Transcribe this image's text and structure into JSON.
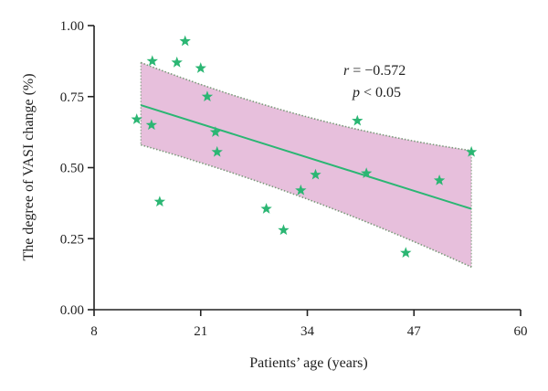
{
  "chart_data": {
    "type": "scatter",
    "xlabel": "Patients’ age (years)",
    "ylabel": "The degree of VASI change (%)",
    "xlim": [
      8,
      60
    ],
    "ylim": [
      0,
      1.0
    ],
    "x_ticks": [
      8,
      21,
      34,
      47,
      60
    ],
    "x_tick_labels": [
      "8",
      "21",
      "34",
      "47",
      "60"
    ],
    "y_ticks": [
      0,
      0.25,
      0.5,
      0.75,
      1.0
    ],
    "y_tick_labels": [
      "0.00",
      "0.25",
      "0.50",
      "0.75",
      "1.00"
    ],
    "points": [
      {
        "x": 13.2,
        "y": 0.67
      },
      {
        "x": 15.0,
        "y": 0.65
      },
      {
        "x": 15.1,
        "y": 0.875
      },
      {
        "x": 16.0,
        "y": 0.38
      },
      {
        "x": 18.1,
        "y": 0.87
      },
      {
        "x": 19.1,
        "y": 0.945
      },
      {
        "x": 21.0,
        "y": 0.85
      },
      {
        "x": 21.8,
        "y": 0.75
      },
      {
        "x": 22.8,
        "y": 0.625
      },
      {
        "x": 23.0,
        "y": 0.555
      },
      {
        "x": 29.0,
        "y": 0.355
      },
      {
        "x": 31.1,
        "y": 0.28
      },
      {
        "x": 33.2,
        "y": 0.42
      },
      {
        "x": 35.0,
        "y": 0.475
      },
      {
        "x": 40.1,
        "y": 0.665
      },
      {
        "x": 41.2,
        "y": 0.48
      },
      {
        "x": 46.0,
        "y": 0.2
      },
      {
        "x": 50.1,
        "y": 0.455
      },
      {
        "x": 54.0,
        "y": 0.555
      }
    ],
    "regression": {
      "x": [
        13.7,
        54.0
      ],
      "y": [
        0.72,
        0.355
      ]
    },
    "confidence_band": {
      "x": [
        13.7,
        54.0
      ],
      "upper": [
        0.87,
        0.56
      ],
      "lower": [
        0.58,
        0.15
      ]
    },
    "annotations": {
      "r_label": "r",
      "r_value": " = −0.572",
      "p_label": "p",
      "p_value": " < 0.05"
    },
    "colors": {
      "points": "#2bb673",
      "regression_line": "#2bb673",
      "band_fill": "#e7bfdc",
      "band_border": "#7a9a7a",
      "axis": "#222222"
    }
  }
}
